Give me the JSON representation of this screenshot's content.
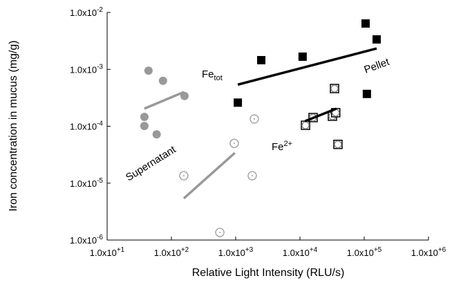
{
  "chart_data": {
    "type": "scatter",
    "x_label": "Relative Light Intensity (RLU/s)",
    "y_label": "Iron concentration in mucus (mg/g)",
    "xscale": "log",
    "yscale": "log",
    "xlim": [
      10,
      1000000
    ],
    "ylim": [
      1e-06,
      0.01
    ],
    "xticks": [
      {
        "value": 10,
        "label": "1.0x10+1"
      },
      {
        "value": 100,
        "label": "1.0x10+2"
      },
      {
        "value": 1000,
        "label": "1.0x10+3"
      },
      {
        "value": 10000,
        "label": "1.0x10+4"
      },
      {
        "value": 100000,
        "label": "1.0x10+5"
      },
      {
        "value": 1000000,
        "label": "1.0x10+6"
      }
    ],
    "yticks": [
      {
        "value": 1e-06,
        "label": "1.0x10-6"
      },
      {
        "value": 1e-05,
        "label": "1.0x10-5"
      },
      {
        "value": 0.0001,
        "label": "1.0x10-4"
      },
      {
        "value": 0.001,
        "label": "1.0x10-3"
      },
      {
        "value": 0.01,
        "label": "1.0x10-2"
      }
    ],
    "series": [
      {
        "mode": "markers",
        "marker": "square",
        "color": "#000000",
        "x": [
          1080,
          2500,
          11000,
          105000,
          156000,
          110000
        ],
        "values": [
          0.00026,
          0.00145,
          0.00167,
          0.0064,
          0.00336,
          0.00037
        ]
      },
      {
        "mode": "line",
        "color": "#000000",
        "x": [
          1080,
          156000
        ],
        "values": [
          0.00054,
          0.00233
        ]
      },
      {
        "mode": "markers",
        "marker": "square-circle",
        "color": "#000000",
        "x": [
          12200,
          16000,
          34500,
          32000,
          36000,
          39000
        ],
        "values": [
          0.000104,
          0.000142,
          0.00046,
          0.00015,
          0.000173,
          4.8e-05
        ]
      },
      {
        "mode": "line",
        "color": "#000000",
        "x": [
          12000,
          37000
        ],
        "values": [
          0.000123,
          0.000204
        ]
      },
      {
        "mode": "markers",
        "marker": "circle",
        "color": "#999999",
        "x": [
          44,
          74,
          38,
          38,
          59,
          160
        ],
        "values": [
          0.00095,
          0.00063,
          0.000146,
          0.000101,
          7.2e-05,
          0.00034
        ]
      },
      {
        "mode": "line",
        "color": "#999999",
        "x": [
          38,
          157
        ],
        "values": [
          0.000204,
          0.0004
        ]
      },
      {
        "mode": "markers",
        "marker": "circle-dot",
        "color": "#999999",
        "x": [
          156,
          950,
          1950,
          1810,
          567
        ],
        "values": [
          1.35e-05,
          5e-05,
          0.000134,
          1.35e-05,
          1.36e-06
        ]
      },
      {
        "mode": "line",
        "color": "#999999",
        "x": [
          156,
          970
        ],
        "values": [
          5.4e-06,
          3.4e-05
        ]
      }
    ],
    "annotations": [
      {
        "text": "Fe",
        "subscript": "tot"
      },
      {
        "text": "Fe",
        "superscript": "2+"
      },
      {
        "text": "Pellet"
      },
      {
        "text": "Supernatant"
      }
    ]
  }
}
